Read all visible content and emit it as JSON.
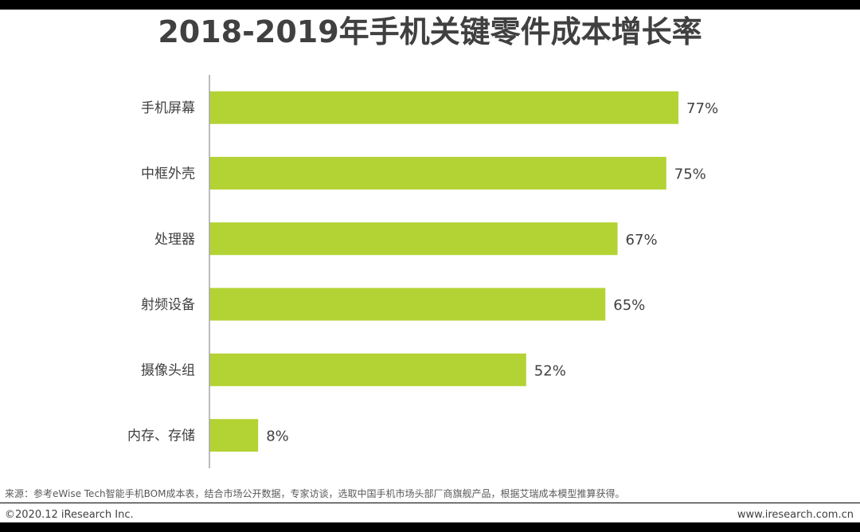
{
  "page": {
    "title": "2018-2019年手机关键零件成本增长率",
    "source": "来源：参考eWise Tech智能手机BOM成本表，结合市场公开数据，专家访谈，选取中国手机市场头部厂商旗舰产品，根据艾瑞成本模型推算获得。",
    "copyright": "©2020.12 iResearch Inc.",
    "website": "www.iresearch.com.cn"
  },
  "colors": {
    "bar": "#b3d334",
    "axis": "#a6a6a6",
    "text": "#404040"
  },
  "chart_data": {
    "type": "bar",
    "orientation": "horizontal",
    "title": "2018-2019年手机关键零件成本增长率",
    "categories": [
      "手机屏幕",
      "中框外壳",
      "处理器",
      "射频设备",
      "摄像头组",
      "内存、存储"
    ],
    "values": [
      77,
      75,
      67,
      65,
      52,
      8
    ],
    "data_labels": [
      "77%",
      "75%",
      "67%",
      "65%",
      "52%",
      "8%"
    ],
    "unit": "%",
    "xlim": [
      0,
      100
    ],
    "grid": false,
    "legend": "none"
  }
}
